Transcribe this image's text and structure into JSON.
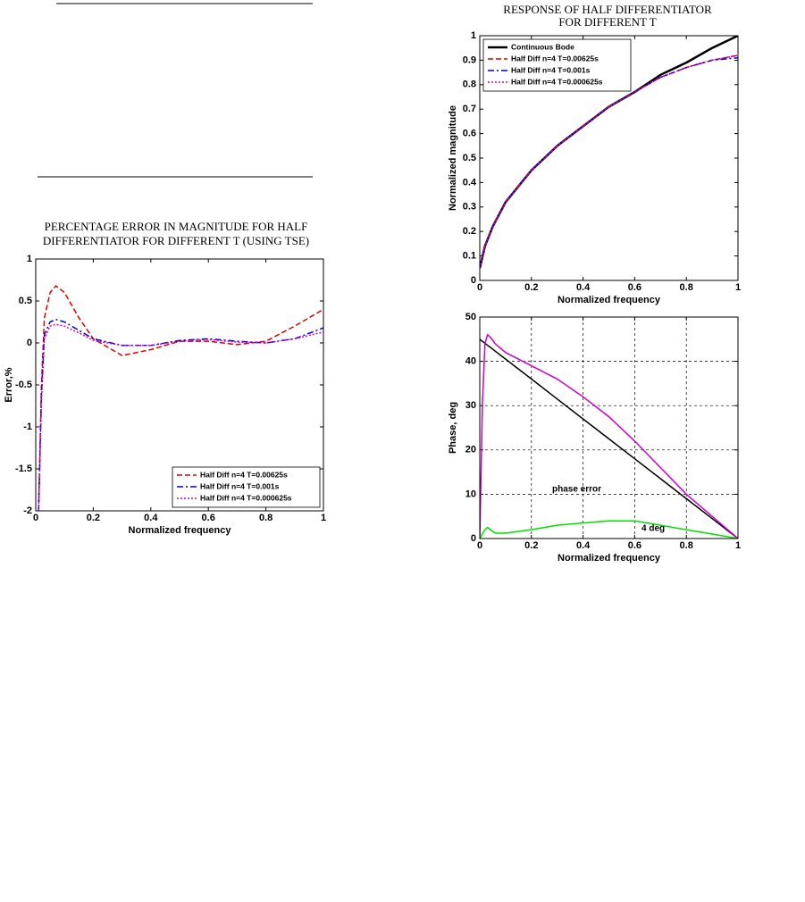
{
  "chart_data": [
    {
      "type": "line",
      "title": [
        "PERCENTAGE  ERROR IN MAGNITUDE FOR HALF",
        "DIFFERENTIATOR FOR DIFFERENT T (USING TSE)"
      ],
      "xlabel": "Normalized frequency",
      "ylabel": "Error,%",
      "x": [
        0.01,
        0.02,
        0.03,
        0.05,
        0.07,
        0.1,
        0.15,
        0.2,
        0.3,
        0.4,
        0.5,
        0.6,
        0.7,
        0.8,
        0.9,
        1
      ],
      "series": [
        {
          "name": "Half Diff n=4 T=0.00625s",
          "color": "#e00000",
          "line_style": "dashed",
          "values": [
            -2,
            -0.5,
            0.3,
            0.6,
            0.68,
            0.6,
            0.3,
            0.05,
            -0.15,
            -0.08,
            0.02,
            0.02,
            -0.02,
            0.02,
            0.2,
            0.4
          ]
        },
        {
          "name": "Half Diff n=4 T=0.001s",
          "color": "#0000cc",
          "line_style": "dashdot",
          "values": [
            -2,
            -0.6,
            0.1,
            0.25,
            0.28,
            0.25,
            0.15,
            0.05,
            -0.03,
            -0.03,
            0.03,
            0.05,
            0.02,
            0.0,
            0.05,
            0.18
          ]
        },
        {
          "name": "Half Diff n=4 T=0.000625s",
          "color": "#cc00cc",
          "line_style": "dotted",
          "values": [
            -2,
            -0.7,
            0.05,
            0.2,
            0.22,
            0.2,
            0.12,
            0.03,
            -0.03,
            -0.03,
            0.02,
            0.04,
            0.01,
            0.0,
            0.05,
            0.13
          ]
        }
      ],
      "xlim": [
        0,
        1
      ],
      "xticks": [
        0,
        0.2,
        0.4,
        0.6,
        0.8,
        1
      ],
      "ylim": [
        -2,
        1
      ],
      "yticks": [
        -2,
        -1.5,
        -1,
        -0.5,
        0,
        0.5,
        1
      ],
      "grid": false,
      "legend": "lower right"
    },
    {
      "type": "line",
      "title": [
        "RESPONSE OF HALF DIFFERENTIATOR",
        "FOR DIFFERENT T"
      ],
      "xlabel": "Normalized frequency",
      "ylabel": "Normalized magnitude",
      "x": [
        0,
        0.02,
        0.05,
        0.1,
        0.2,
        0.3,
        0.4,
        0.5,
        0.6,
        0.7,
        0.8,
        0.9,
        1
      ],
      "series": [
        {
          "name": "Continuous Bode",
          "color": "#000000",
          "line_style": "solid",
          "values": [
            0.05,
            0.14,
            0.22,
            0.32,
            0.45,
            0.55,
            0.63,
            0.71,
            0.77,
            0.84,
            0.89,
            0.95,
            1.0
          ]
        },
        {
          "name": "Half Diff n=4 T=0.00625s",
          "color": "#e00000",
          "line_style": "dashed",
          "values": [
            0.05,
            0.14,
            0.22,
            0.32,
            0.45,
            0.55,
            0.63,
            0.71,
            0.77,
            0.83,
            0.87,
            0.9,
            0.92
          ]
        },
        {
          "name": "Half Diff n=4 T=0.001s",
          "color": "#0000cc",
          "line_style": "dashdot",
          "values": [
            0.05,
            0.14,
            0.22,
            0.32,
            0.45,
            0.55,
            0.63,
            0.71,
            0.77,
            0.83,
            0.87,
            0.9,
            0.91
          ]
        },
        {
          "name": "Half Diff n=4 T=0.000625s",
          "color": "#cc00cc",
          "line_style": "dotted",
          "values": [
            0.05,
            0.14,
            0.22,
            0.32,
            0.45,
            0.55,
            0.63,
            0.71,
            0.77,
            0.83,
            0.87,
            0.9,
            0.92
          ]
        }
      ],
      "xlim": [
        0,
        1
      ],
      "xticks": [
        0,
        0.2,
        0.4,
        0.6,
        0.8,
        1
      ],
      "ylim": [
        0,
        1
      ],
      "yticks": [
        0,
        0.1,
        0.2,
        0.3,
        0.4,
        0.5,
        0.6,
        0.7,
        0.8,
        0.9,
        1
      ],
      "grid": false,
      "legend": "upper left"
    },
    {
      "type": "line",
      "xlabel": "Normalized frequency",
      "ylabel": "Phase, deg",
      "annotations": [
        "phase error",
        "4 deg"
      ],
      "x": [
        0,
        0.01,
        0.02,
        0.03,
        0.04,
        0.06,
        0.1,
        0.2,
        0.3,
        0.4,
        0.5,
        0.6,
        0.7,
        0.8,
        0.9,
        1
      ],
      "series": [
        {
          "color": "#000000",
          "line_style": "solid",
          "values": [
            45,
            44.5,
            44.1,
            43.6,
            43.2,
            42.3,
            40.5,
            36,
            31.5,
            27,
            22.5,
            18,
            13.5,
            9,
            4.5,
            0
          ]
        },
        {
          "color": "#cc00cc",
          "line_style": "solid",
          "values": [
            0,
            30,
            44,
            46,
            45.5,
            44,
            42,
            39,
            36,
            32,
            27.5,
            22,
            16,
            10,
            5,
            0
          ]
        },
        {
          "color": "#00e000",
          "line_style": "solid",
          "values": [
            0,
            1,
            2,
            2.5,
            2,
            1.2,
            1.2,
            2,
            3,
            3.5,
            4,
            4,
            3,
            2,
            1,
            0
          ]
        }
      ],
      "xlim": [
        0,
        1
      ],
      "xticks": [
        0,
        0.2,
        0.4,
        0.6,
        0.8,
        1
      ],
      "ylim": [
        0,
        50
      ],
      "yticks": [
        0,
        10,
        20,
        30,
        40,
        50
      ],
      "grid": true
    }
  ]
}
